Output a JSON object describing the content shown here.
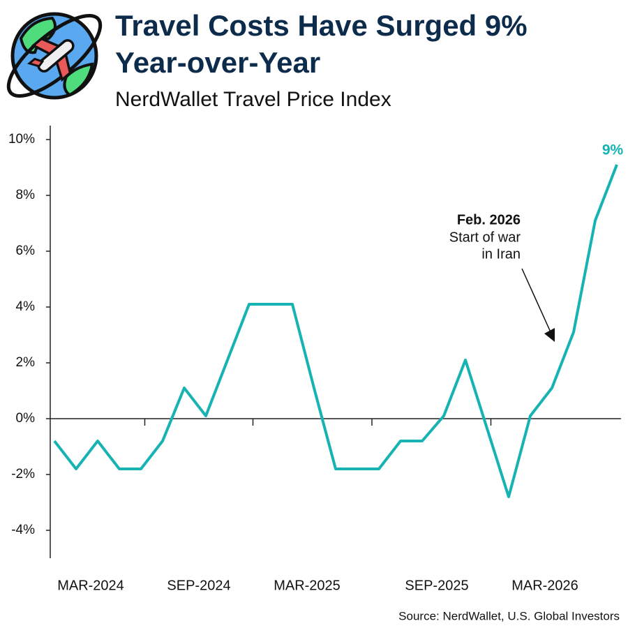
{
  "chart_data": {
    "type": "line",
    "title": [
      "Travel Costs Have Surged 9%",
      "Year-over-Year"
    ],
    "subtitle": "NerdWallet Travel Price Index",
    "source": "Source: NerdWallet, U.S. Global Investors",
    "categories": [
      null,
      null,
      "MAR-2024",
      null,
      null,
      null,
      null,
      "SEP-2024",
      null,
      null,
      null,
      null,
      "MAR-2025",
      null,
      null,
      null,
      null,
      null,
      "SEP-2025",
      null,
      null,
      null,
      null,
      "MAR-2026",
      null,
      null,
      null
    ],
    "series": [
      {
        "name": "NerdWallet Travel Price Index",
        "color": "#17b3b3",
        "values": [
          -0.8,
          -1.8,
          -0.8,
          -1.8,
          -1.8,
          -0.8,
          1.1,
          0.1,
          2.1,
          4.1,
          4.1,
          4.1,
          1.1,
          -1.8,
          -1.8,
          -1.8,
          -0.8,
          -0.8,
          0.1,
          2.1,
          -0.35,
          -2.8,
          0.1,
          1.1,
          3.1,
          7.1,
          9.1
        ],
        "value_labels": [
          null,
          null,
          null,
          null,
          null,
          null,
          null,
          null,
          null,
          null,
          null,
          null,
          null,
          null,
          null,
          null,
          null,
          null,
          null,
          null,
          null,
          null,
          null,
          null,
          null,
          null,
          "9%"
        ]
      }
    ],
    "ylim": [
      -5,
      10.5
    ],
    "yticks": [
      {
        "value": -4,
        "label": "-4%"
      },
      {
        "value": -2,
        "label": "-2%"
      },
      {
        "value": 0,
        "label": "0%"
      },
      {
        "value": 2,
        "label": "2%"
      },
      {
        "value": 4,
        "label": "4%"
      },
      {
        "value": 6,
        "label": "6%"
      },
      {
        "value": 8,
        "label": "8%"
      },
      {
        "value": 10,
        "label": "10%"
      }
    ],
    "annotation": {
      "title": "Feb. 2026",
      "lines": [
        "Start of war",
        "in Iran"
      ]
    }
  }
}
